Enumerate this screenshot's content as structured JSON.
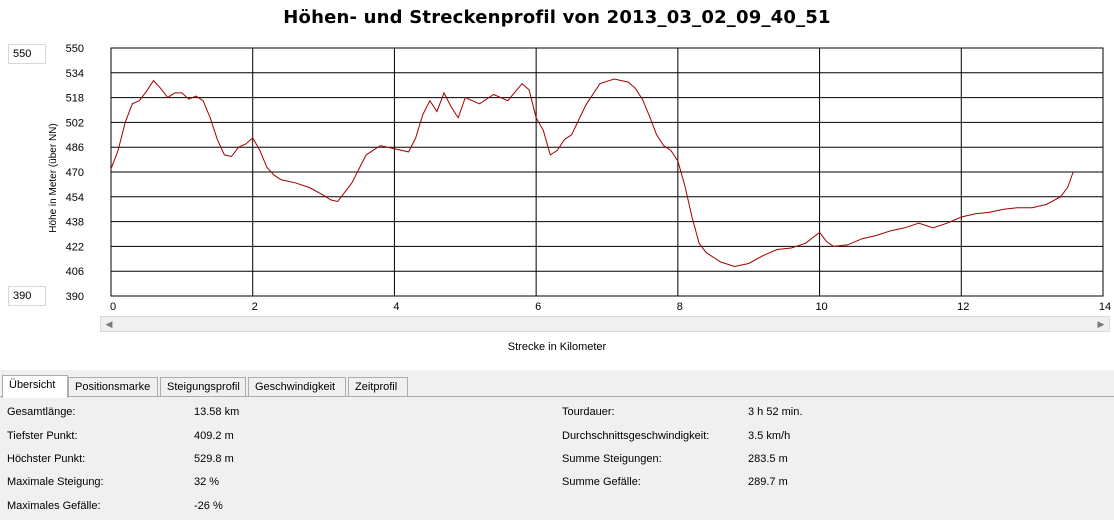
{
  "chart": {
    "title": "Höhen- und Streckenprofil von 2013_03_02_09_40_51",
    "y_max_input": "550",
    "y_min_input": "390",
    "ylabel": "Höhe in Meter (über NN)",
    "xlabel": "Strecke in Kilometer"
  },
  "chart_data": {
    "type": "line",
    "title": "Höhen- und Streckenprofil von 2013_03_02_09_40_51",
    "xlabel": "Strecke in Kilometer",
    "ylabel": "Höhe in Meter (über NN)",
    "xlim": [
      0,
      14
    ],
    "ylim": [
      390,
      550
    ],
    "x_ticks": [
      "0",
      "2",
      "4",
      "6",
      "8",
      "10",
      "12",
      "14"
    ],
    "y_ticks": [
      "550",
      "534",
      "518",
      "502",
      "486",
      "470",
      "454",
      "438",
      "422",
      "406",
      "390"
    ],
    "grid": true,
    "line_color": "#a00000",
    "series": [
      {
        "x": [
          0,
          0.1,
          0.2,
          0.3,
          0.4,
          0.5,
          0.6,
          0.7,
          0.8,
          0.9,
          1.0,
          1.1,
          1.2,
          1.3,
          1.4,
          1.5,
          1.6,
          1.7,
          1.8,
          1.9,
          2.0,
          2.1,
          2.2,
          2.3,
          2.4,
          2.6,
          2.8,
          3.0,
          3.1,
          3.2,
          3.4,
          3.5,
          3.6,
          3.8,
          4.0,
          4.2,
          4.3,
          4.4,
          4.5,
          4.6,
          4.7,
          4.8,
          4.9,
          5.0,
          5.2,
          5.4,
          5.6,
          5.8,
          5.9,
          6.0,
          6.1,
          6.2,
          6.3,
          6.4,
          6.5,
          6.7,
          6.9,
          7.1,
          7.3,
          7.4,
          7.5,
          7.6,
          7.7,
          7.8,
          7.9,
          8.0,
          8.1,
          8.2,
          8.3,
          8.4,
          8.6,
          8.8,
          9.0,
          9.2,
          9.4,
          9.6,
          9.8,
          10.0,
          10.1,
          10.2,
          10.4,
          10.6,
          10.8,
          11.0,
          11.2,
          11.4,
          11.6,
          11.8,
          12.0,
          12.2,
          12.4,
          12.6,
          12.8,
          13.0,
          13.2,
          13.4,
          13.5,
          13.58
        ],
        "values": [
          472,
          484,
          502,
          514,
          516,
          522,
          529,
          524,
          518,
          521,
          521,
          517,
          519,
          516,
          505,
          491,
          481,
          480,
          486,
          488,
          492,
          484,
          473,
          468,
          465,
          463,
          460,
          455,
          452,
          451,
          463,
          472,
          481,
          487,
          485,
          483,
          492,
          507,
          516,
          509,
          521,
          512,
          505,
          518,
          514,
          520,
          516,
          527,
          523,
          505,
          497,
          481,
          484,
          491,
          494,
          513,
          527,
          530,
          528,
          524,
          517,
          506,
          494,
          487,
          484,
          477,
          461,
          441,
          424,
          418,
          412,
          409,
          411,
          416,
          420,
          421,
          424,
          431,
          425,
          422,
          423,
          427,
          429,
          432,
          434,
          437,
          434,
          437,
          441,
          443,
          444,
          446,
          447,
          447,
          449,
          454,
          460,
          470
        ]
      }
    ]
  },
  "tabs": [
    {
      "label": "Übersicht"
    },
    {
      "label": "Positionsmarke"
    },
    {
      "label": "Steigungsprofil"
    },
    {
      "label": "Geschwindigkeit"
    },
    {
      "label": "Zeitprofil"
    }
  ],
  "stats_left": [
    {
      "label": "Gesamtlänge:",
      "value": "13.58 km"
    },
    {
      "label": "Tiefster Punkt:",
      "value": "409.2 m"
    },
    {
      "label": "Höchster Punkt:",
      "value": "529.8 m"
    },
    {
      "label": "Maximale Steigung:",
      "value": "32 %"
    },
    {
      "label": "Maximales Gefälle:",
      "value": "-26 %"
    }
  ],
  "stats_right": [
    {
      "label": "Tourdauer:",
      "value": "3 h 52 min."
    },
    {
      "label": "Durchschnittsgeschwindigkeit:",
      "value": "3.5 km/h"
    },
    {
      "label": "Summe Steigungen:",
      "value": "283.5 m"
    },
    {
      "label": "Summe Gefälle:",
      "value": "289.7 m"
    }
  ]
}
